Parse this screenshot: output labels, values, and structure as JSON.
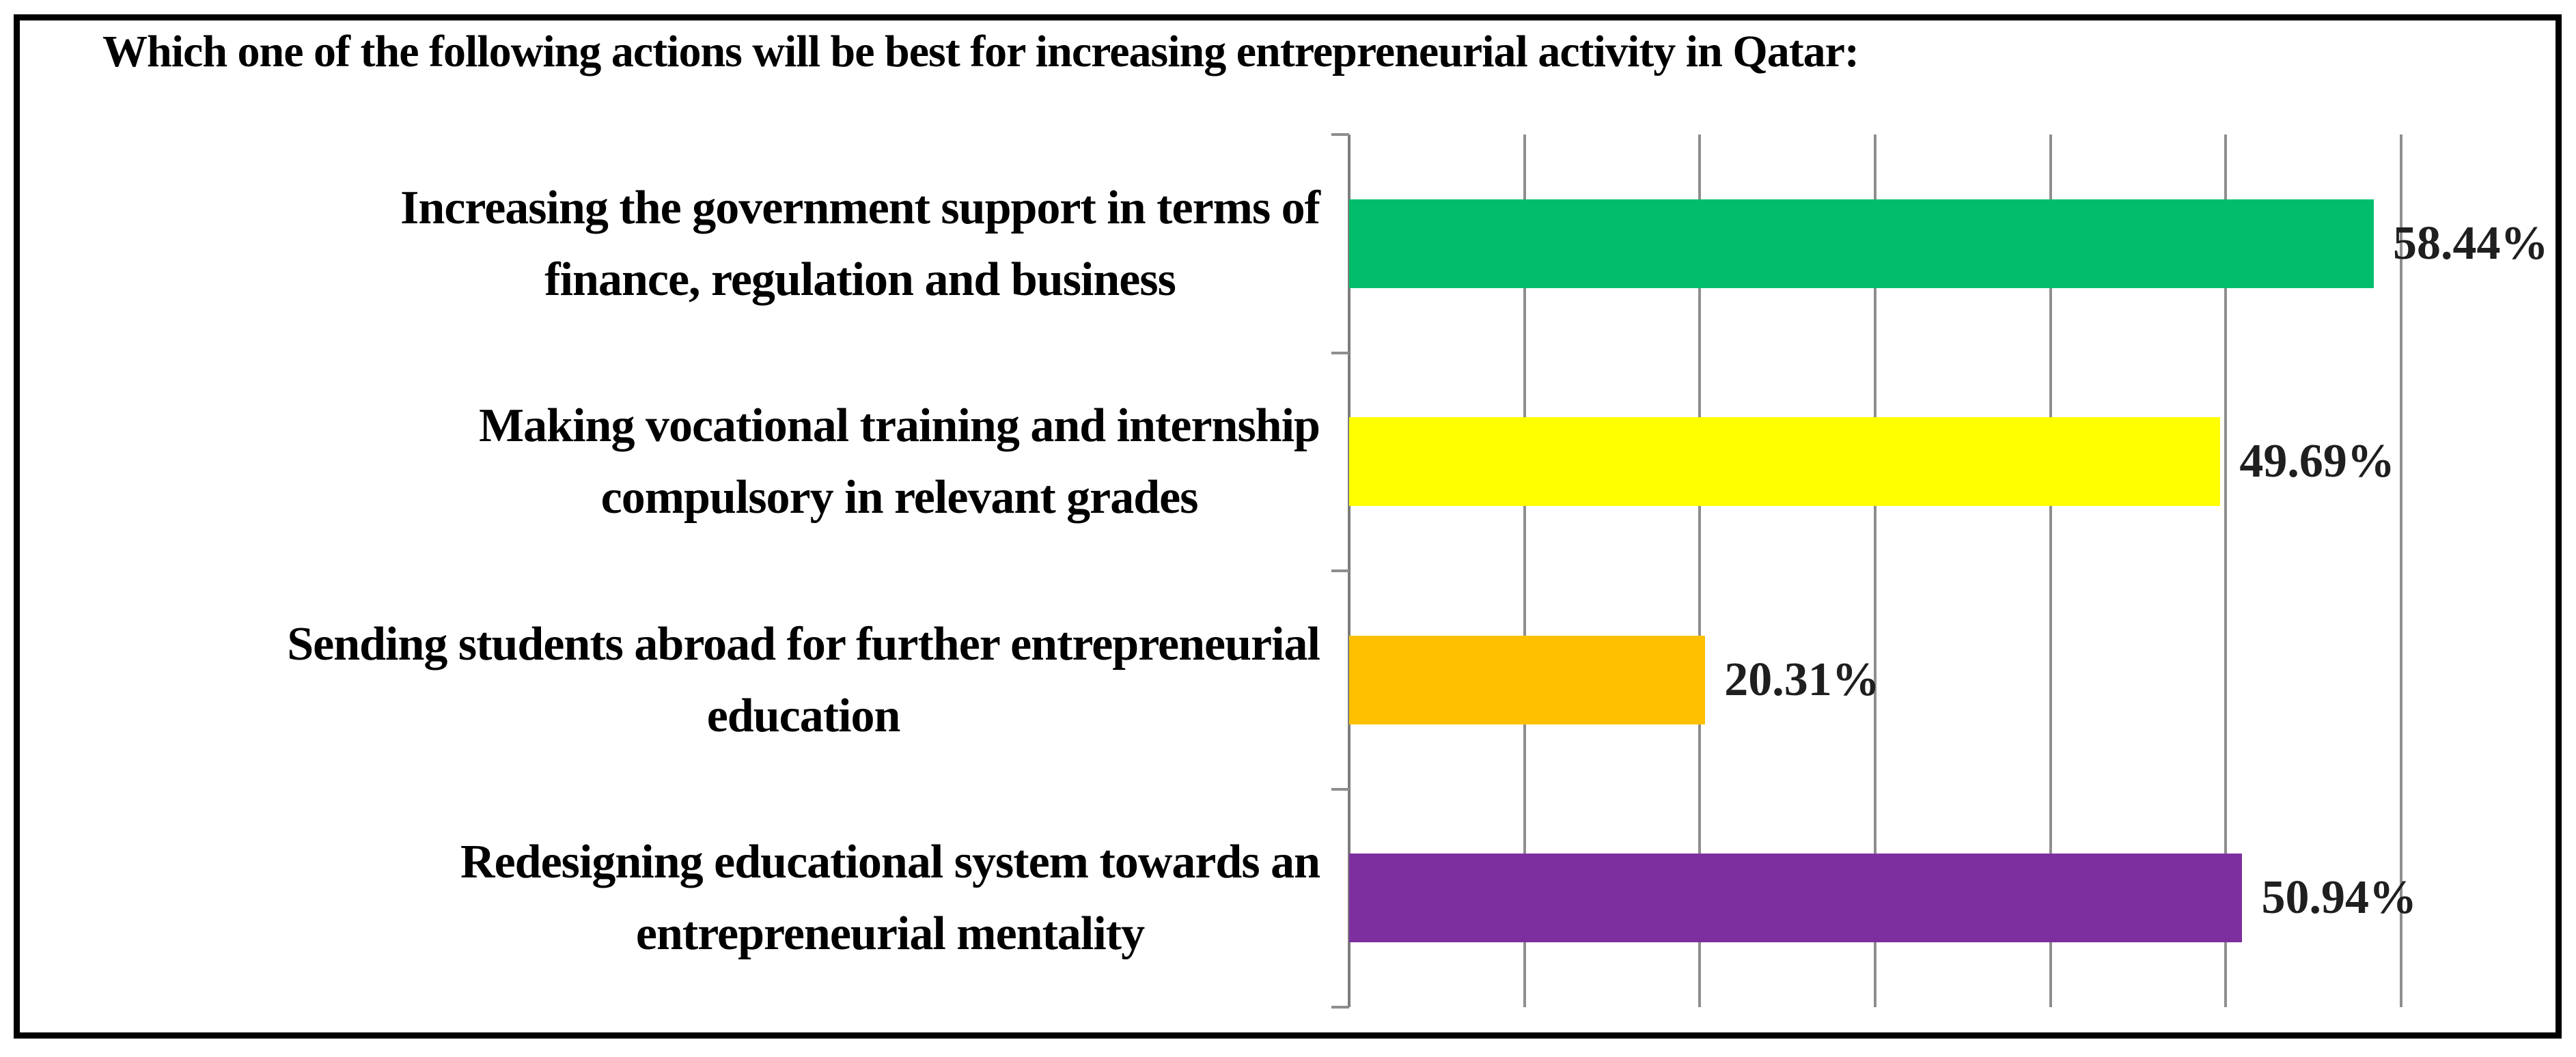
{
  "chart_data": {
    "type": "bar",
    "orientation": "horizontal",
    "title": "Which one of the following actions will be best for increasing entrepreneurial activity in Qatar:",
    "categories": [
      "Increasing the government support in terms of\nfinance, regulation and business",
      "Making vocational training and internship\ncompulsory in relevant grades",
      "Sending students abroad for further entrepreneurial\neducation",
      "Redesigning educational system towards an\nentrepreneurial mentality"
    ],
    "values": [
      58.44,
      49.69,
      20.31,
      50.94
    ],
    "value_labels": [
      "58.44%",
      "49.69%",
      "20.31%",
      "50.94%"
    ],
    "bar_colors": [
      "#00BE6C",
      "#FFFF00",
      "#FFC000",
      "#7E2F9F"
    ],
    "xlim": [
      0,
      60
    ],
    "grid_step": 10,
    "grid": true,
    "gridline_color": "#8E8E8E",
    "axis_color": "#7D7D7D",
    "legend": "none",
    "xlabel": "",
    "ylabel": "",
    "x_tick_labels_visible": false
  },
  "frame": {
    "border_color": "#000000",
    "background": "#FFFFFF"
  },
  "text_color": "#000000"
}
